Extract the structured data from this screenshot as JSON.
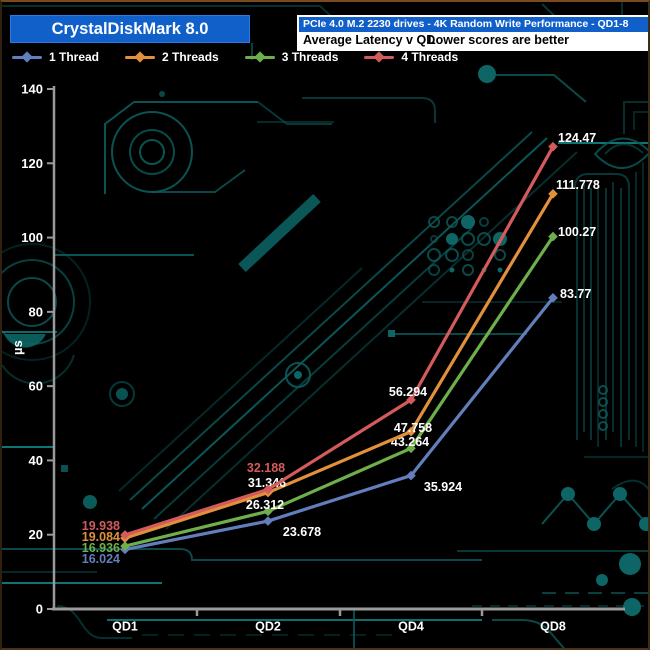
{
  "header": {
    "app_title": "CrystalDiskMark 8.0",
    "info_line1": "PCIe 4.0 M.2 2230 drives - 4K Random Write Performance - QD1-8",
    "info_line2_left": "Average Latency v QD",
    "info_line2_right": "Lower scores are better"
  },
  "colors": {
    "header_blue": "#1160ca",
    "background": "#000000",
    "circuit_teal": "#0c5b5b",
    "circuit_bright": "#0f7474",
    "axis_gray": "#9a9a9a",
    "frame_border_brown": "#5a3a1e"
  },
  "legend": {
    "items": [
      {
        "label": "1 Thread",
        "color": "#637ebc"
      },
      {
        "label": "2 Threads",
        "color": "#e2903b"
      },
      {
        "label": "3 Threads",
        "color": "#6faf4b"
      },
      {
        "label": "4 Threads",
        "color": "#d45b5b"
      }
    ]
  },
  "chart_data": {
    "type": "line",
    "title": "PCIe 4.0 M.2 2230 drives - 4K Random Write Performance - QD1-8",
    "subtitle_left": "Average Latency v QD",
    "subtitle_right": "Lower scores are better",
    "categories": [
      "QD1",
      "QD2",
      "QD4",
      "QD8"
    ],
    "series": [
      {
        "name": "1 Thread",
        "color": "#637ebc",
        "values": [
          16.024,
          23.678,
          35.924,
          83.77
        ]
      },
      {
        "name": "2 Threads",
        "color": "#e2903b",
        "values": [
          19.084,
          31.346,
          47.758,
          111.778
        ]
      },
      {
        "name": "3 Threads",
        "color": "#6faf4b",
        "values": [
          16.936,
          26.312,
          43.264,
          100.27
        ]
      },
      {
        "name": "4 Threads",
        "color": "#d45b5b",
        "values": [
          19.938,
          32.188,
          56.294,
          124.47
        ]
      }
    ],
    "xlabel": "",
    "ylabel": "µs",
    "ylim": [
      0,
      140
    ],
    "yticks": [
      0,
      20,
      40,
      60,
      80,
      100,
      120,
      140
    ],
    "grid": false,
    "legend_position": "top-left",
    "marker": "diamond",
    "point_label_colors": [
      [
        "series",
        "white",
        "white",
        "white"
      ],
      [
        "series",
        "white",
        "white",
        "white"
      ],
      [
        "series",
        "white",
        "white",
        "white"
      ],
      [
        "series",
        "series",
        "white",
        "white"
      ]
    ]
  }
}
